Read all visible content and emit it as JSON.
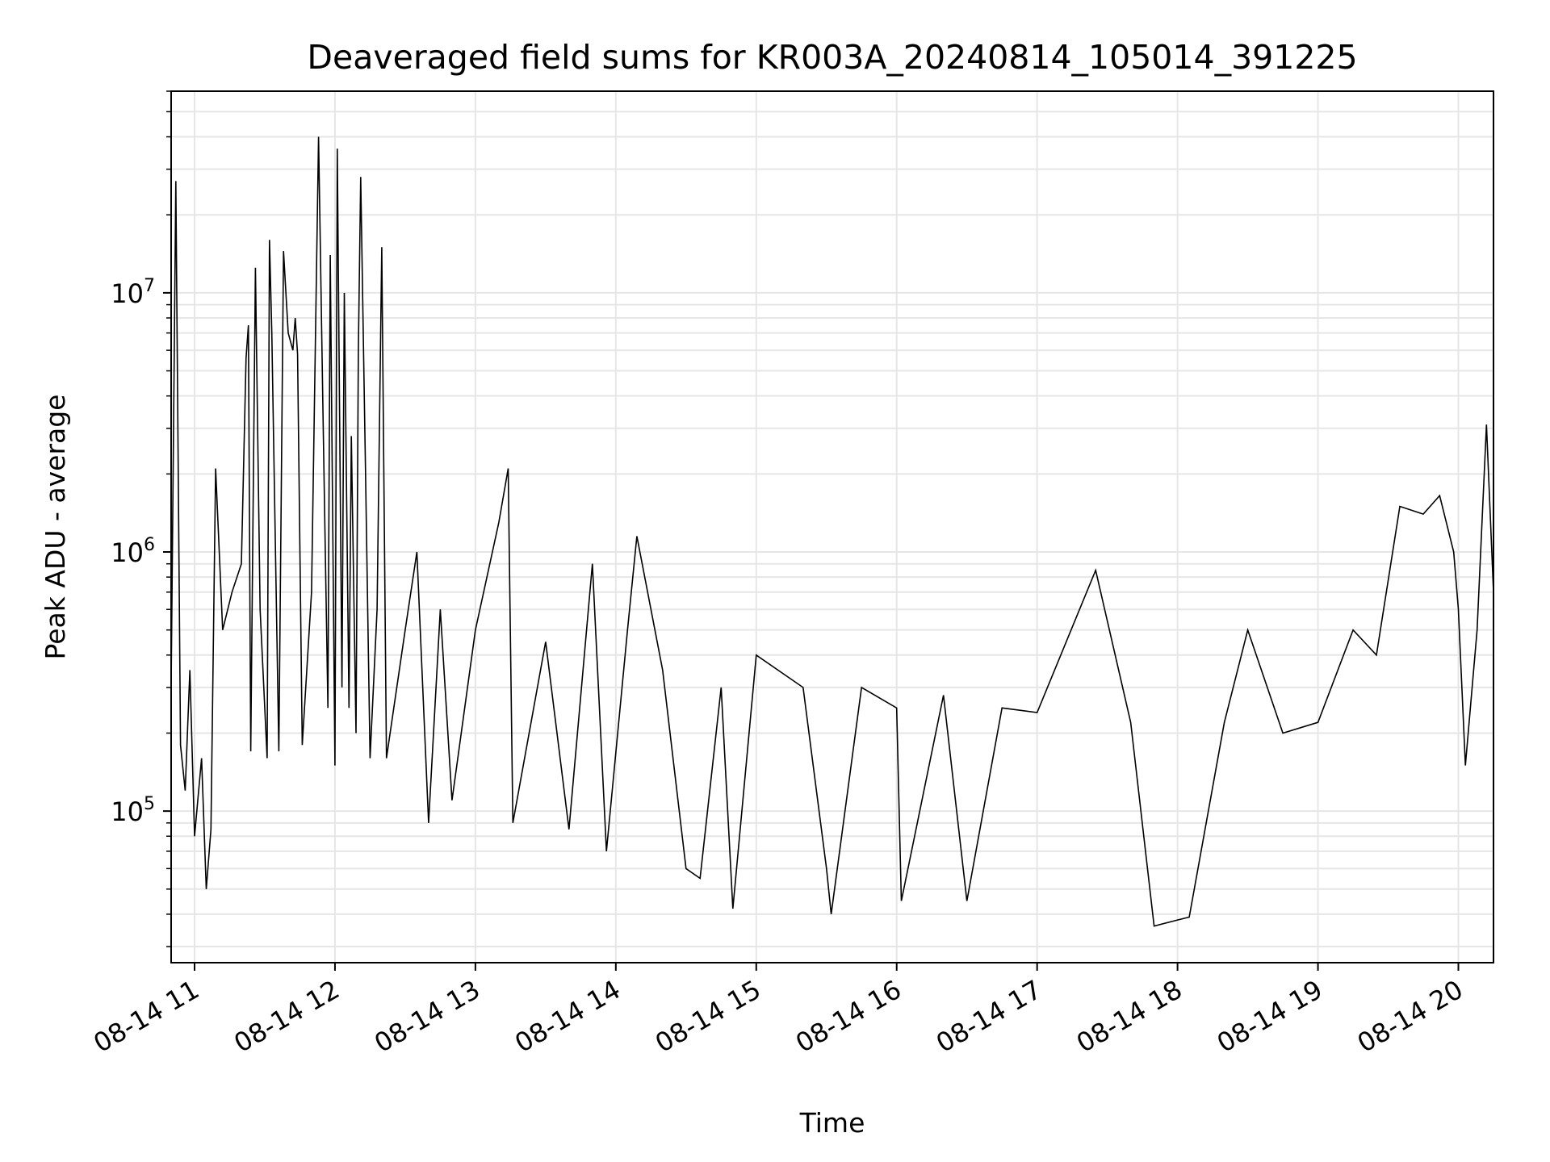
{
  "chart_data": {
    "type": "line",
    "title": "Deaveraged field sums for KR003A_20240814_105014_391225",
    "xlabel": "Time",
    "ylabel": "Peak ADU - average",
    "yscale": "log",
    "ylim": [
      26000,
      60000000
    ],
    "xlim": [
      "2024-08-14T10:50:00",
      "2024-08-14T20:15:00"
    ],
    "grid": true,
    "colors": {
      "line": "#000000",
      "grid": "#e6e6e6",
      "axes": "#000000"
    },
    "x_ticks": [
      {
        "label": "08-14 11",
        "time": "2024-08-14T11:00:00"
      },
      {
        "label": "08-14 12",
        "time": "2024-08-14T12:00:00"
      },
      {
        "label": "08-14 13",
        "time": "2024-08-14T13:00:00"
      },
      {
        "label": "08-14 14",
        "time": "2024-08-14T14:00:00"
      },
      {
        "label": "08-14 15",
        "time": "2024-08-14T15:00:00"
      },
      {
        "label": "08-14 16",
        "time": "2024-08-14T16:00:00"
      },
      {
        "label": "08-14 17",
        "time": "2024-08-14T17:00:00"
      },
      {
        "label": "08-14 18",
        "time": "2024-08-14T18:00:00"
      },
      {
        "label": "08-14 19",
        "time": "2024-08-14T19:00:00"
      },
      {
        "label": "08-14 20",
        "time": "2024-08-14T20:00:00"
      }
    ],
    "y_ticks": [
      {
        "base": "10",
        "exp": "5",
        "value": 100000
      },
      {
        "base": "10",
        "exp": "6",
        "value": 1000000
      },
      {
        "base": "10",
        "exp": "7",
        "value": 10000000
      }
    ],
    "series": [
      {
        "values": [
          [
            "2024-08-14T10:50:00",
            300000
          ],
          [
            "2024-08-14T10:52:00",
            27000000
          ],
          [
            "2024-08-14T10:54:00",
            180000
          ],
          [
            "2024-08-14T10:56:00",
            120000
          ],
          [
            "2024-08-14T10:58:00",
            350000
          ],
          [
            "2024-08-14T11:00:00",
            80000
          ],
          [
            "2024-08-14T11:03:00",
            160000
          ],
          [
            "2024-08-14T11:05:00",
            50000
          ],
          [
            "2024-08-14T11:07:00",
            85000
          ],
          [
            "2024-08-14T11:09:00",
            2100000
          ],
          [
            "2024-08-14T11:12:00",
            500000
          ],
          [
            "2024-08-14T11:16:00",
            700000
          ],
          [
            "2024-08-14T11:20:00",
            900000
          ],
          [
            "2024-08-14T11:22:00",
            5600000
          ],
          [
            "2024-08-14T11:23:00",
            7500000
          ],
          [
            "2024-08-14T11:24:00",
            170000
          ],
          [
            "2024-08-14T11:26:00",
            12500000
          ],
          [
            "2024-08-14T11:28:00",
            600000
          ],
          [
            "2024-08-14T11:31:00",
            160000
          ],
          [
            "2024-08-14T11:32:00",
            16000000
          ],
          [
            "2024-08-14T11:33:00",
            7000000
          ],
          [
            "2024-08-14T11:36:00",
            170000
          ],
          [
            "2024-08-14T11:38:00",
            14500000
          ],
          [
            "2024-08-14T11:40:00",
            7000000
          ],
          [
            "2024-08-14T11:42:00",
            6000000
          ],
          [
            "2024-08-14T11:43:00",
            8000000
          ],
          [
            "2024-08-14T11:44:00",
            5800000
          ],
          [
            "2024-08-14T11:46:00",
            180000
          ],
          [
            "2024-08-14T11:50:00",
            700000
          ],
          [
            "2024-08-14T11:53:00",
            40000000
          ],
          [
            "2024-08-14T11:55:00",
            3000000
          ],
          [
            "2024-08-14T11:57:00",
            250000
          ],
          [
            "2024-08-14T11:58:00",
            14000000
          ],
          [
            "2024-08-14T12:00:00",
            150000
          ],
          [
            "2024-08-14T12:01:00",
            36000000
          ],
          [
            "2024-08-14T12:03:00",
            300000
          ],
          [
            "2024-08-14T12:04:00",
            10000000
          ],
          [
            "2024-08-14T12:06:00",
            250000
          ],
          [
            "2024-08-14T12:07:00",
            2800000
          ],
          [
            "2024-08-14T12:09:00",
            200000
          ],
          [
            "2024-08-14T12:10:00",
            6000000
          ],
          [
            "2024-08-14T12:11:00",
            28000000
          ],
          [
            "2024-08-14T12:13:00",
            2200000
          ],
          [
            "2024-08-14T12:15:00",
            160000
          ],
          [
            "2024-08-14T12:18:00",
            600000
          ],
          [
            "2024-08-14T12:20:00",
            15000000
          ],
          [
            "2024-08-14T12:22:00",
            160000
          ],
          [
            "2024-08-14T12:30:00",
            500000
          ],
          [
            "2024-08-14T12:35:00",
            1000000
          ],
          [
            "2024-08-14T12:40:00",
            90000
          ],
          [
            "2024-08-14T12:45:00",
            600000
          ],
          [
            "2024-08-14T12:50:00",
            110000
          ],
          [
            "2024-08-14T13:00:00",
            500000
          ],
          [
            "2024-08-14T13:10:00",
            1300000
          ],
          [
            "2024-08-14T13:14:00",
            2100000
          ],
          [
            "2024-08-14T13:16:00",
            90000
          ],
          [
            "2024-08-14T13:30:00",
            450000
          ],
          [
            "2024-08-14T13:40:00",
            85000
          ],
          [
            "2024-08-14T13:50:00",
            900000
          ],
          [
            "2024-08-14T13:56:00",
            70000
          ],
          [
            "2024-08-14T14:05:00",
            500000
          ],
          [
            "2024-08-14T14:09:00",
            1150000
          ],
          [
            "2024-08-14T14:20:00",
            350000
          ],
          [
            "2024-08-14T14:30:00",
            60000
          ],
          [
            "2024-08-14T14:36:00",
            55000
          ],
          [
            "2024-08-14T14:45:00",
            300000
          ],
          [
            "2024-08-14T14:50:00",
            42000
          ],
          [
            "2024-08-14T15:00:00",
            400000
          ],
          [
            "2024-08-14T15:20:00",
            300000
          ],
          [
            "2024-08-14T15:30:00",
            60000
          ],
          [
            "2024-08-14T15:32:00",
            40000
          ],
          [
            "2024-08-14T15:45:00",
            300000
          ],
          [
            "2024-08-14T16:00:00",
            250000
          ],
          [
            "2024-08-14T16:02:00",
            45000
          ],
          [
            "2024-08-14T16:20:00",
            280000
          ],
          [
            "2024-08-14T16:30:00",
            45000
          ],
          [
            "2024-08-14T16:45:00",
            250000
          ],
          [
            "2024-08-14T17:00:00",
            240000
          ],
          [
            "2024-08-14T17:25:00",
            850000
          ],
          [
            "2024-08-14T17:40:00",
            220000
          ],
          [
            "2024-08-14T17:50:00",
            36000
          ],
          [
            "2024-08-14T18:00:00",
            38000
          ],
          [
            "2024-08-14T18:05:00",
            39000
          ],
          [
            "2024-08-14T18:20:00",
            220000
          ],
          [
            "2024-08-14T18:30:00",
            500000
          ],
          [
            "2024-08-14T18:45:00",
            200000
          ],
          [
            "2024-08-14T19:00:00",
            220000
          ],
          [
            "2024-08-14T19:15:00",
            500000
          ],
          [
            "2024-08-14T19:25:00",
            400000
          ],
          [
            "2024-08-14T19:35:00",
            1500000
          ],
          [
            "2024-08-14T19:45:00",
            1400000
          ],
          [
            "2024-08-14T19:52:00",
            1650000
          ],
          [
            "2024-08-14T19:58:00",
            1000000
          ],
          [
            "2024-08-14T20:00:00",
            600000
          ],
          [
            "2024-08-14T20:03:00",
            150000
          ],
          [
            "2024-08-14T20:08:00",
            500000
          ],
          [
            "2024-08-14T20:12:00",
            3100000
          ],
          [
            "2024-08-14T20:15:00",
            700000
          ]
        ]
      }
    ]
  }
}
